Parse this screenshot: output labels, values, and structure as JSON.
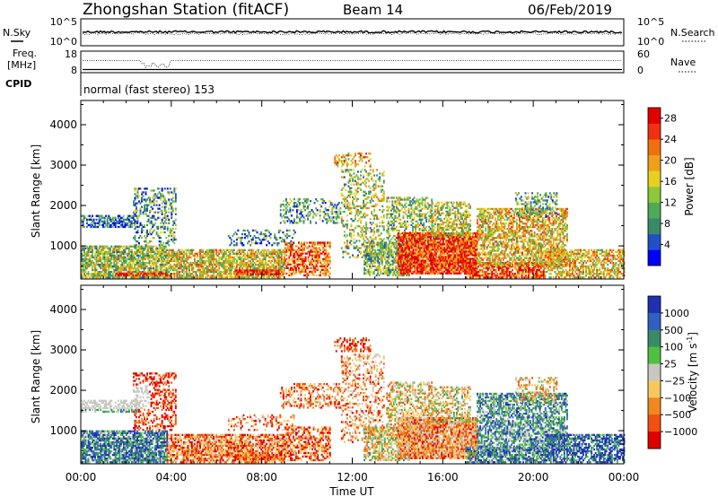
{
  "header": {
    "station": "Zhongshan Station (fitACF)",
    "beam": "Beam 14",
    "date": "06/Feb/2019"
  },
  "noise_panel": {
    "left_label": "N.Sky",
    "right_label": "N.Search",
    "left_ticks": [
      "10^5",
      "10^0"
    ],
    "right_ticks": [
      "10^5",
      "10^0"
    ]
  },
  "freq_panel": {
    "left_label_1": "Freq.",
    "left_label_2": "[MHz]",
    "cpid_label": "CPID",
    "right_label": "Nave",
    "left_ticks": [
      "18",
      "8"
    ],
    "right_ticks": [
      "60",
      "0"
    ]
  },
  "cpid_text": "normal (fast stereo) 153",
  "chart_data": [
    {
      "type": "heatmap",
      "title": "",
      "xlabel": "Time UT",
      "ylabel": "Slant Range [km]",
      "x_ticks": [
        "00:00",
        "04:00",
        "08:00",
        "12:00",
        "16:00",
        "20:00",
        "00:00"
      ],
      "x_range_hours": [
        0,
        24
      ],
      "y_ticks": [
        "1000",
        "2000",
        "3000",
        "4000"
      ],
      "ylim": [
        180,
        4600
      ],
      "colorbar": {
        "label": "Power [dB]",
        "ticks": [
          "4",
          "8",
          "12",
          "16",
          "20",
          "24",
          "28"
        ],
        "range": [
          0,
          30
        ],
        "colors": [
          "#0000ff",
          "#2050c8",
          "#3a8a6a",
          "#4caa58",
          "#8cc83a",
          "#e8d020",
          "#f0a018",
          "#f07010",
          "#f03010",
          "#e00000"
        ]
      }
    },
    {
      "type": "heatmap",
      "title": "",
      "xlabel": "Time UT",
      "ylabel": "Slant Range [km]",
      "x_ticks": [
        "00:00",
        "04:00",
        "08:00",
        "12:00",
        "16:00",
        "20:00",
        "00:00"
      ],
      "x_range_hours": [
        0,
        24
      ],
      "y_ticks": [
        "1000",
        "2000",
        "3000",
        "4000"
      ],
      "ylim": [
        180,
        4600
      ],
      "colorbar": {
        "label": "Velocity [m s",
        "label_sup": "-1",
        "label_end": "]",
        "ticks": [
          "1000",
          "500",
          "100",
          "25",
          "−25",
          "−100",
          "−500",
          "−1000"
        ],
        "colors": [
          "#2030b0",
          "#3060c0",
          "#3a8a6a",
          "#50c040",
          "#c8c8c0",
          "#f8c860",
          "#f08820",
          "#f05010",
          "#e00000"
        ]
      }
    }
  ]
}
